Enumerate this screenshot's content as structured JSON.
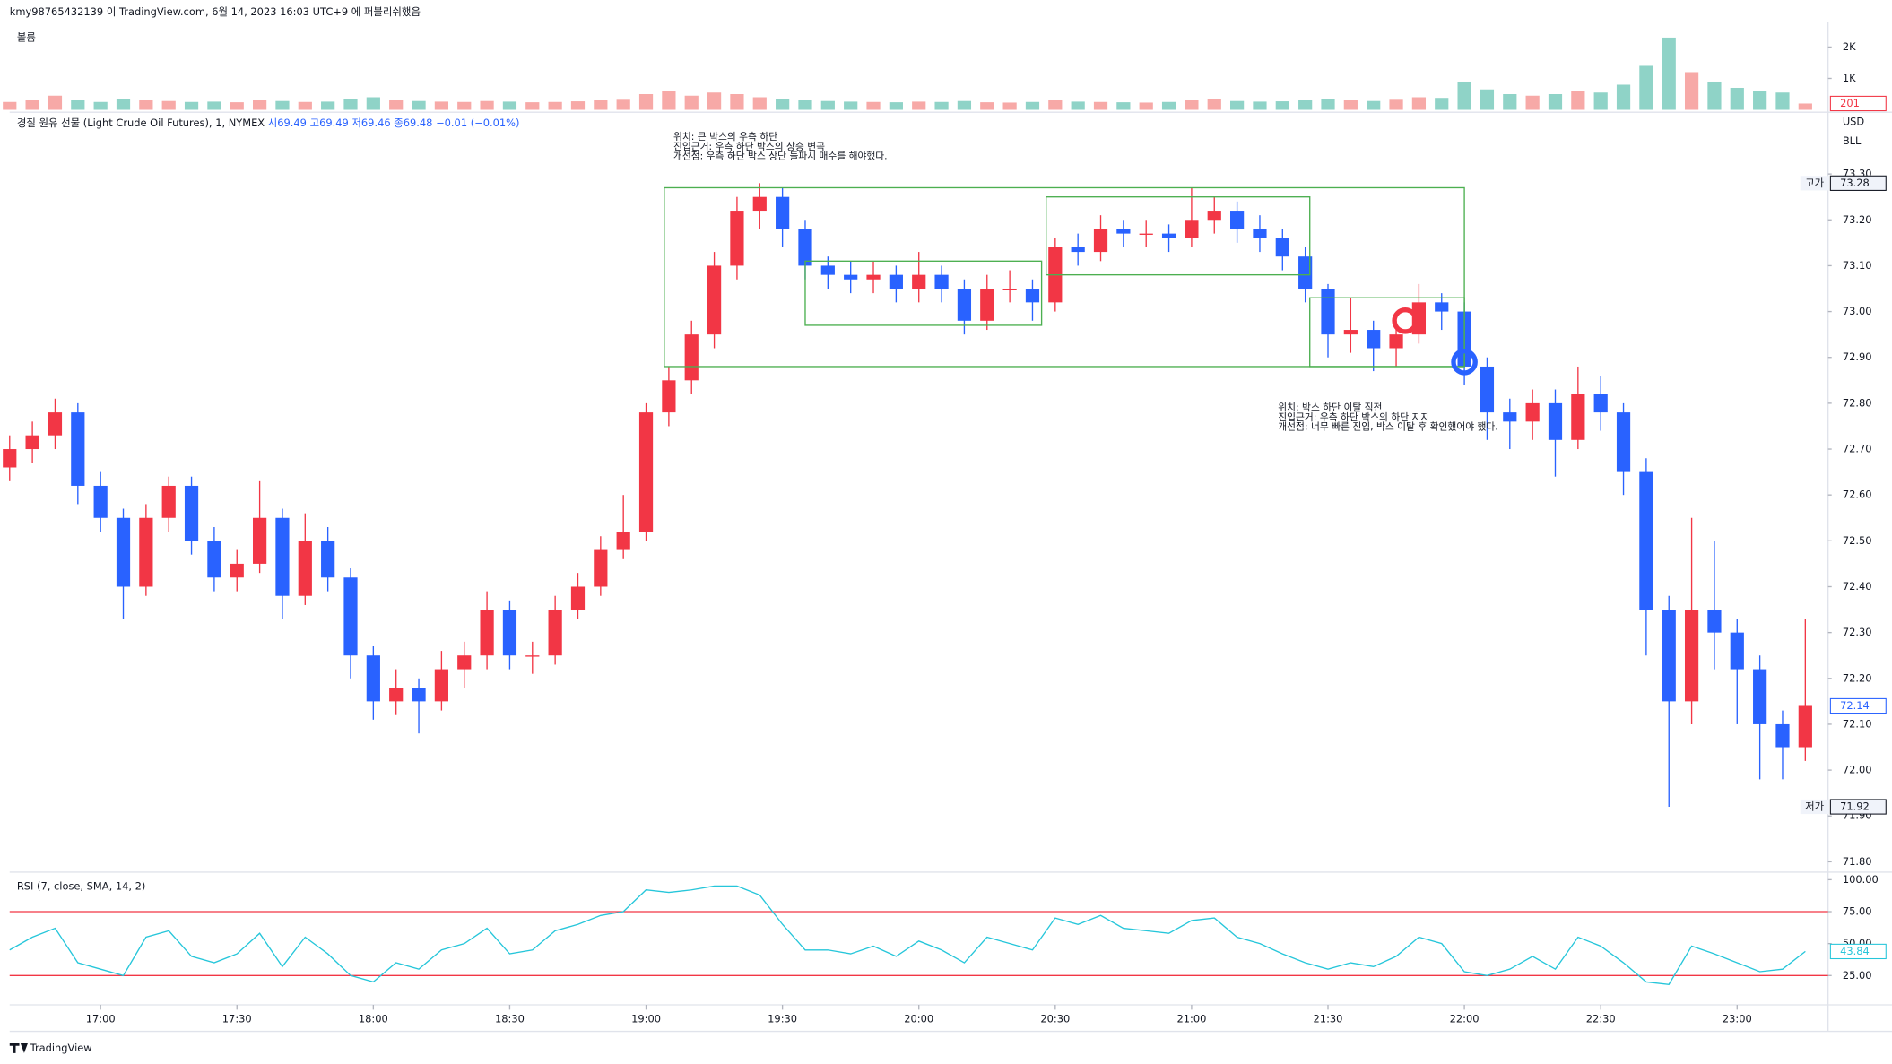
{
  "header": {
    "publisher": "kmy98765432139 이 TradingView.com, 6월 14, 2023 16:03 UTC+9 에 퍼블리쉬했음",
    "footer": "TradingView"
  },
  "chart_data": [
    {
      "type": "candlestick",
      "title": "경질 원유 선물 (Light Crude Oil Futures), 1, NYMEX",
      "legend_values": "시69.49 고69.49 저69.46 종69.48 −0.01 (−0.01%)",
      "currency": "USD",
      "unit": "BLL",
      "up_color": "#f23645",
      "down_color": "#2962ff",
      "x": [
        1000,
        1005,
        1010,
        1015,
        1020,
        1025,
        1030,
        1035,
        1040,
        1045,
        1050,
        1055,
        1060,
        1065,
        1070,
        1075,
        1080,
        1085,
        1090,
        1095,
        1100,
        1105,
        1110,
        1115,
        1120,
        1125,
        1130,
        1135,
        1140,
        1145,
        1150,
        1155,
        1160,
        1165,
        1170,
        1175,
        1180,
        1185,
        1190,
        1195,
        1200,
        1205,
        1210,
        1215,
        1220,
        1225,
        1230,
        1235,
        1240,
        1245,
        1250,
        1255,
        1260,
        1265,
        1270,
        1275,
        1280,
        1285,
        1290,
        1295,
        1300,
        1305,
        1310,
        1315,
        1320,
        1325,
        1330,
        1335,
        1340,
        1345,
        1350,
        1355,
        1360,
        1365,
        1370,
        1375,
        1380,
        1385,
        1390,
        1395
      ],
      "opens": [
        72.66,
        72.7,
        72.73,
        72.78,
        72.62,
        72.55,
        72.4,
        72.55,
        72.62,
        72.5,
        72.42,
        72.45,
        72.55,
        72.38,
        72.5,
        72.42,
        72.25,
        72.15,
        72.18,
        72.15,
        72.22,
        72.25,
        72.35,
        72.25,
        72.25,
        72.35,
        72.4,
        72.48,
        72.52,
        72.78,
        72.85,
        72.95,
        73.1,
        73.22,
        73.25,
        73.18,
        73.1,
        73.08,
        73.07,
        73.08,
        73.05,
        73.08,
        73.05,
        72.98,
        73.05,
        73.05,
        73.02,
        73.14,
        73.13,
        73.18,
        73.17,
        73.17,
        73.16,
        73.2,
        73.22,
        73.18,
        73.16,
        73.12,
        73.05,
        72.95,
        72.96,
        72.92,
        72.95,
        73.02,
        73.0,
        72.88,
        72.78,
        72.76,
        72.8,
        72.72,
        72.82,
        72.78,
        72.65,
        72.35,
        72.15,
        72.35,
        72.3,
        72.22,
        72.1,
        72.05
      ],
      "highs": [
        72.73,
        72.76,
        72.81,
        72.8,
        72.65,
        72.57,
        72.58,
        72.64,
        72.64,
        72.53,
        72.48,
        72.63,
        72.57,
        72.56,
        72.53,
        72.44,
        72.27,
        72.22,
        72.2,
        72.26,
        72.28,
        72.39,
        72.37,
        72.28,
        72.38,
        72.43,
        72.51,
        72.6,
        72.8,
        72.88,
        72.98,
        73.13,
        73.25,
        73.28,
        73.27,
        73.2,
        73.12,
        73.11,
        73.11,
        73.1,
        73.13,
        73.1,
        73.07,
        73.08,
        73.09,
        73.07,
        73.16,
        73.17,
        73.21,
        73.2,
        73.2,
        73.19,
        73.27,
        73.25,
        73.24,
        73.21,
        73.18,
        73.14,
        73.06,
        73.03,
        72.98,
        72.98,
        73.06,
        73.04,
        73.02,
        72.9,
        72.81,
        72.83,
        72.83,
        72.88,
        72.86,
        72.8,
        72.68,
        72.38,
        72.55,
        72.5,
        72.33,
        72.25,
        72.13,
        72.33
      ],
      "lows": [
        72.63,
        72.67,
        72.7,
        72.58,
        72.52,
        72.33,
        72.38,
        72.52,
        72.47,
        72.39,
        72.39,
        72.43,
        72.33,
        72.36,
        72.39,
        72.2,
        72.11,
        72.12,
        72.08,
        72.13,
        72.18,
        72.22,
        72.22,
        72.21,
        72.23,
        72.33,
        72.38,
        72.46,
        72.5,
        72.75,
        72.82,
        72.92,
        73.07,
        73.18,
        73.14,
        73.07,
        73.05,
        73.04,
        73.04,
        73.02,
        73.02,
        73.02,
        72.95,
        72.96,
        73.02,
        72.98,
        73.0,
        73.1,
        73.11,
        73.14,
        73.14,
        73.13,
        73.14,
        73.17,
        73.15,
        73.13,
        73.09,
        73.02,
        72.9,
        72.91,
        72.87,
        72.88,
        72.93,
        72.96,
        72.84,
        72.72,
        72.7,
        72.72,
        72.64,
        72.7,
        72.74,
        72.6,
        72.25,
        71.92,
        72.1,
        72.22,
        72.1,
        71.98,
        71.98,
        72.02
      ],
      "closes": [
        72.7,
        72.73,
        72.78,
        72.62,
        72.55,
        72.4,
        72.55,
        72.62,
        72.5,
        72.42,
        72.45,
        72.55,
        72.38,
        72.5,
        72.42,
        72.25,
        72.15,
        72.18,
        72.15,
        72.22,
        72.25,
        72.35,
        72.25,
        72.25,
        72.35,
        72.4,
        72.48,
        72.52,
        72.78,
        72.85,
        72.95,
        73.1,
        73.22,
        73.25,
        73.18,
        73.1,
        73.08,
        73.07,
        73.08,
        73.05,
        73.08,
        73.05,
        72.98,
        73.05,
        73.05,
        73.02,
        73.14,
        73.13,
        73.18,
        73.17,
        73.17,
        73.16,
        73.2,
        73.22,
        73.18,
        73.16,
        73.12,
        73.05,
        72.95,
        72.96,
        72.92,
        72.95,
        73.02,
        73.0,
        72.88,
        72.78,
        72.76,
        72.8,
        72.72,
        72.82,
        72.78,
        72.65,
        72.35,
        72.15,
        72.35,
        72.3,
        72.22,
        72.1,
        72.05,
        72.14
      ],
      "xlim": [
        1000,
        1400
      ],
      "ylim": [
        71.78,
        73.39
      ],
      "yticks": [
        {
          "value": 71.8,
          "label": "71.80"
        },
        {
          "value": 71.9,
          "label": "71.90"
        },
        {
          "value": 72.0,
          "label": "72.00"
        },
        {
          "value": 72.1,
          "label": "72.10"
        },
        {
          "value": 72.2,
          "label": "72.20"
        },
        {
          "value": 72.3,
          "label": "72.30"
        },
        {
          "value": 72.4,
          "label": "72.40"
        },
        {
          "value": 72.5,
          "label": "72.50"
        },
        {
          "value": 72.6,
          "label": "72.60"
        },
        {
          "value": 72.7,
          "label": "72.70"
        },
        {
          "value": 72.8,
          "label": "72.80"
        },
        {
          "value": 72.9,
          "label": "72.90"
        },
        {
          "value": 73.0,
          "label": "73.00"
        },
        {
          "value": 73.1,
          "label": "73.10"
        },
        {
          "value": 73.2,
          "label": "73.20"
        },
        {
          "value": 73.3,
          "label": "73.30"
        }
      ],
      "high_label": "고가",
      "low_label": "저가",
      "box_color": "#4caf50",
      "boxes": [
        {
          "x": [
            1144,
            1320
          ],
          "y": [
            72.88,
            73.27
          ]
        },
        {
          "x": [
            1175,
            1227
          ],
          "y": [
            72.97,
            73.11
          ]
        },
        {
          "x": [
            1228,
            1286
          ],
          "y": [
            73.08,
            73.25
          ]
        },
        {
          "x": [
            1286,
            1320
          ],
          "y": [
            72.88,
            73.03
          ]
        }
      ],
      "markers": [
        {
          "x": 1307,
          "y": 72.98,
          "color": "#f23645"
        },
        {
          "x": 1320,
          "y": 72.89,
          "color": "#2962ff"
        }
      ],
      "annotations": [
        {
          "x": 1146,
          "y": 73.38,
          "lines": [
            "위치: 큰 박스의 우측 하단",
            "진입근거: 우측 하단 박스의 상승 변곡",
            "개선점: 우측 하단 박스 상단 돌파시 매수를 해야했다."
          ]
        },
        {
          "x": 1279,
          "y": 72.79,
          "lines": [
            "위치: 박스 하단 이탈 직전",
            "진입근거: 우측 하단 박스의 하단 지지",
            "개선점: 너무 빠른 진입, 박스 이탈 후 확인했어야 했다."
          ]
        }
      ]
    },
    {
      "type": "bar",
      "title": "볼륨",
      "up_color": "#f7a9a7",
      "down_color": "#8fd3c7",
      "values": [
        250,
        300,
        450,
        300,
        250,
        350,
        300,
        280,
        250,
        260,
        240,
        300,
        280,
        250,
        260,
        350,
        400,
        300,
        280,
        260,
        250,
        280,
        260,
        240,
        250,
        270,
        300,
        320,
        500,
        600,
        450,
        550,
        500,
        400,
        350,
        300,
        280,
        260,
        250,
        240,
        260,
        250,
        280,
        240,
        230,
        250,
        300,
        260,
        250,
        240,
        230,
        250,
        300,
        350,
        280,
        260,
        270,
        300,
        350,
        300,
        280,
        320,
        400,
        380,
        900,
        650,
        500,
        450,
        500,
        600,
        550,
        800,
        1400,
        2300,
        1200,
        900,
        700,
        600,
        550,
        201
      ],
      "ylim": [
        0,
        2650
      ],
      "yticks": [
        {
          "value": 1000,
          "label": "1K"
        },
        {
          "value": 2000,
          "label": "2K"
        }
      ]
    },
    {
      "type": "line",
      "title": "RSI (7, close, SMA, 14, 2)",
      "color": "#26c6da",
      "values": [
        45,
        55,
        62,
        35,
        30,
        25,
        55,
        60,
        40,
        35,
        42,
        58,
        32,
        55,
        42,
        25,
        20,
        35,
        30,
        45,
        50,
        62,
        42,
        45,
        60,
        65,
        72,
        75,
        92,
        90,
        92,
        95,
        95,
        88,
        65,
        45,
        45,
        42,
        48,
        40,
        52,
        45,
        35,
        55,
        50,
        45,
        70,
        65,
        72,
        62,
        60,
        58,
        68,
        70,
        55,
        50,
        42,
        35,
        30,
        35,
        32,
        40,
        55,
        50,
        28,
        25,
        30,
        40,
        30,
        55,
        48,
        35,
        20,
        18,
        48,
        42,
        35,
        28,
        30,
        43.84
      ],
      "ylim": [
        3,
        104
      ],
      "yticks": [
        {
          "value": 100,
          "label": "100.00"
        },
        {
          "value": 75,
          "label": "75.00"
        },
        {
          "value": 50,
          "label": "50.00"
        },
        {
          "value": 25,
          "label": "25.00"
        }
      ],
      "bands": [
        75,
        25
      ],
      "band_color": "#f23645",
      "xticks": [
        {
          "value": 1020,
          "label": "17:00"
        },
        {
          "value": 1050,
          "label": "17:30"
        },
        {
          "value": 1080,
          "label": "18:00"
        },
        {
          "value": 1110,
          "label": "18:30"
        },
        {
          "value": 1140,
          "label": "19:00"
        },
        {
          "value": 1170,
          "label": "19:30"
        },
        {
          "value": 1200,
          "label": "20:00"
        },
        {
          "value": 1230,
          "label": "20:30"
        },
        {
          "value": 1260,
          "label": "21:00"
        },
        {
          "value": 1290,
          "label": "21:30"
        },
        {
          "value": 1320,
          "label": "22:00"
        },
        {
          "value": 1350,
          "label": "22:30"
        },
        {
          "value": 1380,
          "label": "23:00"
        }
      ]
    }
  ]
}
